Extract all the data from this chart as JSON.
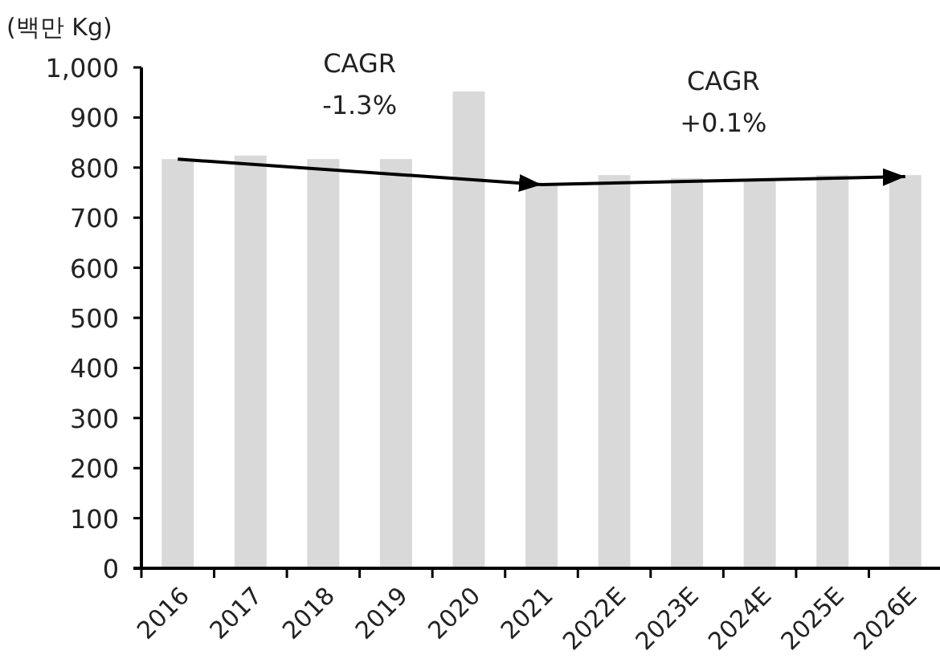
{
  "chart_data": {
    "type": "bar",
    "ylabel": "(백만 Kg)",
    "categories": [
      "2016",
      "2017",
      "2018",
      "2019",
      "2020",
      "2021",
      "2022E",
      "2023E",
      "2024E",
      "2025E",
      "2026E"
    ],
    "series": [
      {
        "color": "#d9d9d9",
        "values": [
          817,
          824,
          817,
          817,
          952,
          766,
          785,
          779,
          776,
          785,
          785
        ]
      },
      {
        "type": "line",
        "color": "#000000",
        "values": [
          817,
          null,
          null,
          null,
          null,
          766,
          null,
          null,
          null,
          null,
          null
        ]
      },
      {
        "type": "line",
        "color": "#000000",
        "values": [
          null,
          null,
          null,
          null,
          null,
          766,
          null,
          null,
          null,
          null,
          782
        ]
      }
    ],
    "annotations": [
      "CAGR\n-1.3%",
      "CAGR\n+0.1%"
    ],
    "ylim": [
      0,
      1000
    ],
    "yticks": [
      0,
      100,
      200,
      300,
      400,
      500,
      600,
      700,
      800,
      900,
      {
        "value": 1000,
        "label": "1,000"
      }
    ]
  }
}
